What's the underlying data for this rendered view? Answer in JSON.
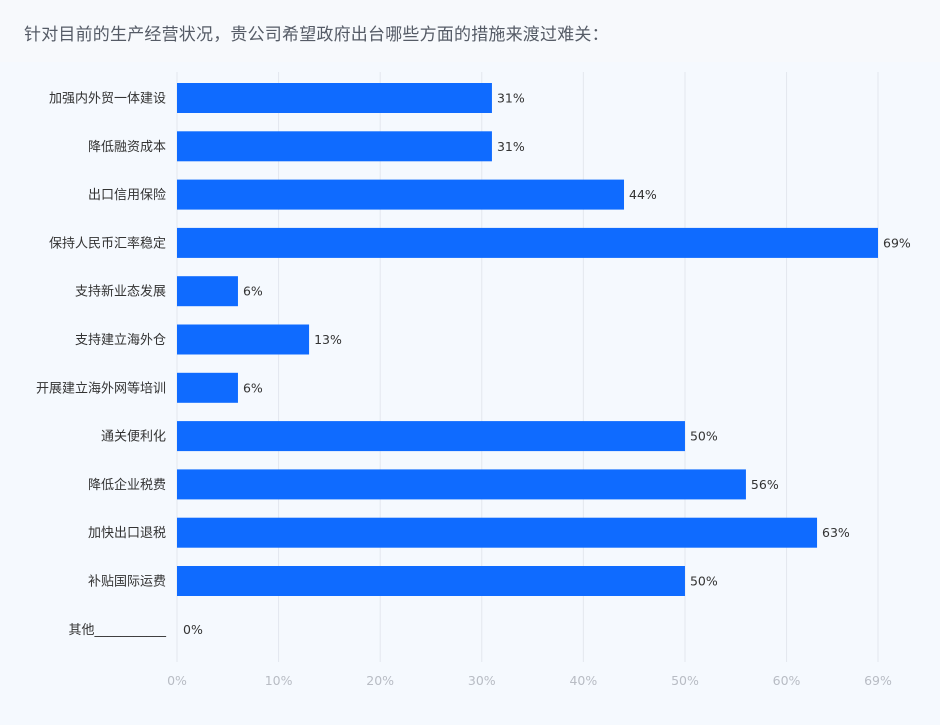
{
  "question": "针对目前的生产经营状况，贵公司希望政府出台哪些方面的措施来渡过难关：",
  "chart_data": {
    "type": "bar",
    "orientation": "horizontal",
    "categories": [
      "加强内外贸一体建设",
      "降低融资成本",
      "出口信用保险",
      "保持人民币汇率稳定",
      "支持新业态发展",
      "支持建立海外仓",
      "开展建立海外网等培训",
      "通关便利化",
      "降低企业税费",
      "加快出口退税",
      "补贴国际运费",
      "其他___________"
    ],
    "values": [
      31,
      31,
      44,
      69,
      6,
      13,
      6,
      50,
      56,
      63,
      50,
      0
    ],
    "value_labels": [
      "31%",
      "31%",
      "44%",
      "69%",
      "6%",
      "13%",
      "6%",
      "50%",
      "56%",
      "63%",
      "50%",
      "0%"
    ],
    "x_ticks": [
      0,
      10,
      20,
      30,
      40,
      50,
      60,
      69
    ],
    "x_tick_labels": [
      "0%",
      "10%",
      "20%",
      "30%",
      "40%",
      "50%",
      "60%",
      "69%"
    ],
    "xlim": [
      0,
      69
    ],
    "grid": true,
    "bar_color": "#0f6bff"
  }
}
